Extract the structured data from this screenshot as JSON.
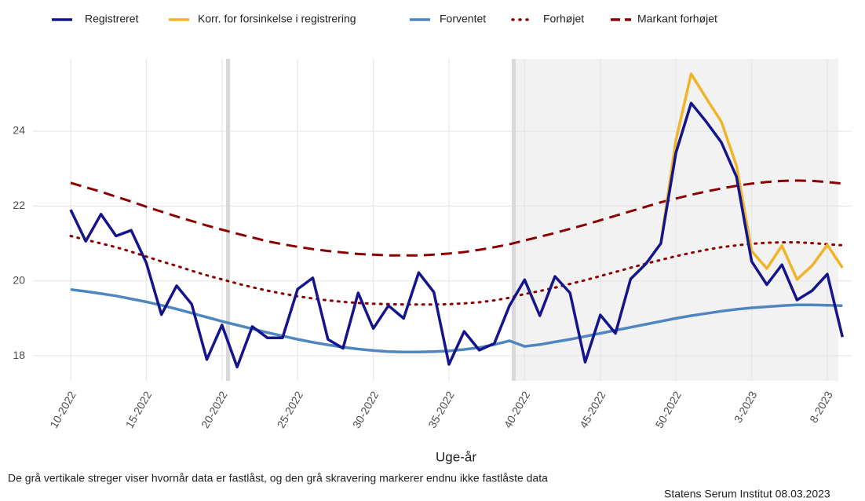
{
  "chart_data": {
    "type": "line",
    "xlabel": "Uge-år",
    "caption": "De grå vertikale streger viser hvornår data er fastlåst, og den grå skravering markerer endnu ikke fastlåste data",
    "source": "Statens Serum Institut  08.03.2023",
    "categories": [
      "10-2022",
      null,
      null,
      null,
      null,
      "15-2022",
      null,
      null,
      null,
      null,
      "20-2022",
      null,
      null,
      null,
      null,
      "25-2022",
      null,
      null,
      null,
      null,
      "30-2022",
      null,
      null,
      null,
      null,
      "35-2022",
      null,
      null,
      null,
      null,
      "40-2022",
      null,
      null,
      null,
      null,
      "45-2022",
      null,
      null,
      null,
      null,
      "50-2022",
      null,
      null,
      null,
      null,
      "3-2023",
      null,
      null,
      null,
      null,
      "8-2023",
      null
    ],
    "ylim": [
      17.33,
      25.93
    ],
    "yticks": [
      18,
      20,
      22,
      24
    ],
    "grid": true,
    "legend": "top",
    "series": [
      {
        "name": "Registreret",
        "color": "#14148c",
        "style": "solid",
        "values": [
          21.9,
          21.06,
          21.78,
          21.2,
          21.35,
          20.48,
          19.1,
          19.87,
          19.38,
          17.9,
          18.82,
          17.7,
          18.78,
          18.48,
          18.48,
          19.78,
          20.08,
          18.44,
          18.2,
          19.68,
          18.73,
          19.34,
          19.0,
          20.22,
          19.7,
          17.77,
          18.65,
          18.15,
          18.33,
          19.34,
          20.03,
          19.07,
          20.12,
          19.68,
          17.83,
          19.09,
          18.6,
          20.05,
          20.45,
          21.0,
          23.43,
          24.75,
          24.25,
          23.7,
          22.78,
          20.52,
          19.9,
          20.43,
          19.49,
          19.74,
          20.18,
          18.5
        ]
      },
      {
        "name": "Korr. for forsinkelse i registrering",
        "color": "#f0b429",
        "style": "solid",
        "values": [
          null,
          null,
          null,
          null,
          null,
          null,
          null,
          null,
          null,
          null,
          null,
          null,
          null,
          null,
          null,
          null,
          null,
          null,
          null,
          null,
          null,
          null,
          null,
          null,
          null,
          null,
          null,
          null,
          null,
          null,
          null,
          null,
          null,
          null,
          null,
          null,
          null,
          null,
          null,
          21.0,
          23.77,
          25.53,
          24.88,
          24.25,
          23.08,
          20.8,
          20.33,
          20.94,
          20.04,
          20.41,
          20.96,
          20.35
        ]
      },
      {
        "name": "Forventet",
        "color": "#4f86c0",
        "style": "solid",
        "values": [
          19.77,
          19.72,
          19.66,
          19.6,
          19.52,
          19.44,
          19.35,
          19.25,
          19.14,
          19.03,
          18.92,
          18.82,
          18.72,
          18.62,
          18.53,
          18.44,
          18.36,
          18.29,
          18.23,
          18.18,
          18.14,
          18.11,
          18.1,
          18.1,
          18.11,
          18.13,
          18.17,
          18.22,
          18.3,
          18.4,
          18.25,
          18.3,
          18.37,
          18.44,
          18.52,
          18.6,
          18.68,
          18.76,
          18.84,
          18.92,
          19.0,
          19.07,
          19.13,
          19.19,
          19.24,
          19.28,
          19.31,
          19.34,
          19.36,
          19.36,
          19.35,
          19.34
        ]
      },
      {
        "name": "Forhøjet",
        "color": "#8b0000",
        "style": "dotted",
        "values": [
          21.2,
          21.1,
          21.0,
          20.9,
          20.78,
          20.65,
          20.52,
          20.4,
          20.27,
          20.15,
          20.04,
          19.93,
          19.83,
          19.74,
          19.66,
          19.59,
          19.53,
          19.48,
          19.44,
          19.41,
          19.39,
          19.38,
          19.37,
          19.37,
          19.37,
          19.38,
          19.4,
          19.43,
          19.48,
          19.55,
          19.65,
          19.73,
          19.82,
          19.92,
          20.02,
          20.13,
          20.24,
          20.35,
          20.46,
          20.56,
          20.66,
          20.75,
          20.83,
          20.9,
          20.95,
          20.99,
          21.02,
          21.03,
          21.03,
          21.01,
          20.98,
          20.95
        ]
      },
      {
        "name": "Markant forhøjet",
        "color": "#8b0000",
        "style": "dashed",
        "values": [
          22.62,
          22.5,
          22.38,
          22.25,
          22.12,
          21.98,
          21.85,
          21.72,
          21.6,
          21.48,
          21.37,
          21.26,
          21.16,
          21.06,
          20.98,
          20.91,
          20.85,
          20.8,
          20.76,
          20.72,
          20.7,
          20.68,
          20.68,
          20.68,
          20.7,
          20.73,
          20.77,
          20.83,
          20.9,
          20.98,
          21.08,
          21.18,
          21.28,
          21.39,
          21.5,
          21.62,
          21.74,
          21.86,
          21.98,
          22.1,
          22.2,
          22.3,
          22.39,
          22.47,
          22.54,
          22.6,
          22.64,
          22.67,
          22.68,
          22.67,
          22.64,
          22.6
        ]
      }
    ]
  }
}
